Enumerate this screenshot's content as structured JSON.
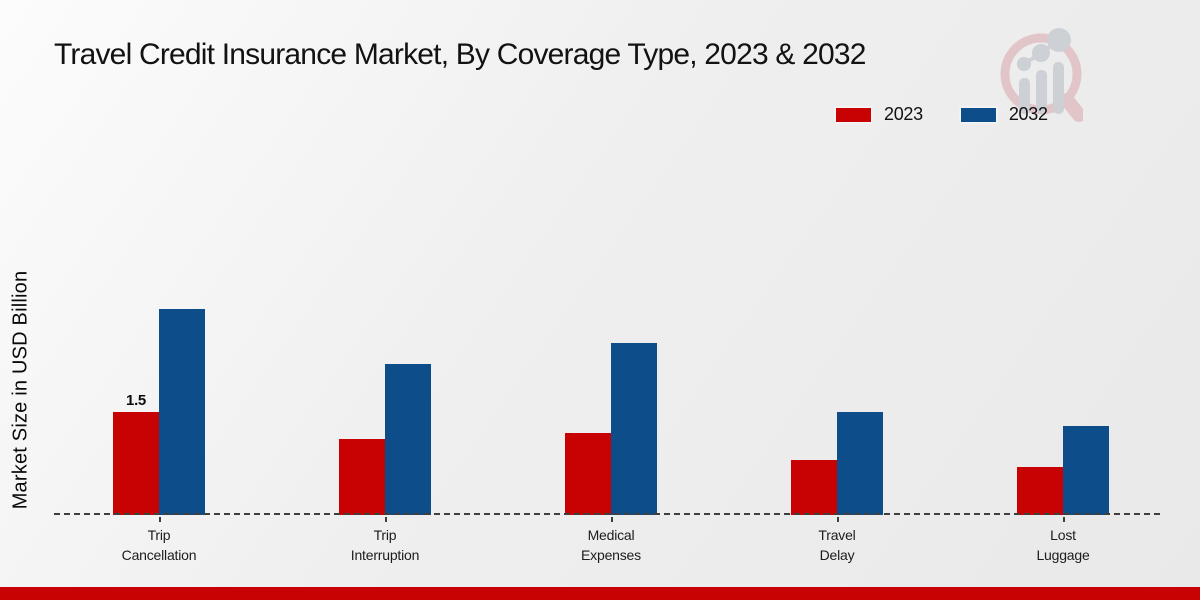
{
  "title": "Travel Credit Insurance Market, By Coverage Type, 2023 & 2032",
  "y_axis_label": "Market Size in USD Billion",
  "watermark_icon": "magnifier-bar-chart-logo",
  "footer_bar_color": "#c80202",
  "chart_data": {
    "type": "bar",
    "categories": [
      "Trip\nCancellation",
      "Trip\nInterruption",
      "Medical\nExpenses",
      "Travel\nDelay",
      "Lost\nLuggage"
    ],
    "series": [
      {
        "name": "2023",
        "color": "#c80202",
        "values": [
          1.5,
          1.1,
          1.2,
          0.8,
          0.7
        ]
      },
      {
        "name": "2032",
        "color": "#0d4e8a",
        "values": [
          3.0,
          2.2,
          2.5,
          1.5,
          1.3
        ]
      }
    ],
    "data_labels": [
      {
        "series": "2023",
        "category_index": 0,
        "text": "1.5"
      }
    ],
    "title": "Travel Credit Insurance Market, By Coverage Type, 2023 & 2032",
    "xlabel": "",
    "ylabel": "Market Size in USD Billion",
    "ylim": [
      0,
      3.2
    ],
    "grid": false,
    "legend_position": "top-right",
    "baseline_style": "dashed",
    "y_ticks_visible": false
  }
}
